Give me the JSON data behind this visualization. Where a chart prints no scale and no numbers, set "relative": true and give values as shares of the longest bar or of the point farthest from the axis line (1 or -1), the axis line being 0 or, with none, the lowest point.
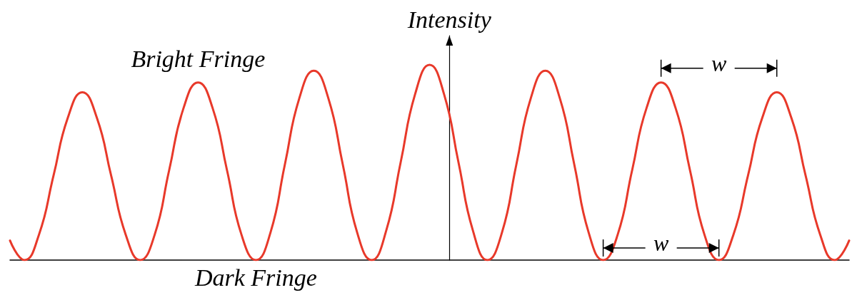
{
  "chart_data": {
    "type": "line",
    "relative": true,
    "ylabel": "Intensity",
    "color": "#e8392a",
    "categories": [
      null,
      null,
      null,
      null,
      null,
      null,
      null,
      null,
      null,
      null,
      null,
      null,
      null,
      null,
      null,
      null,
      null,
      null,
      null,
      null,
      null,
      null,
      null,
      null,
      null,
      null,
      null,
      null,
      null,
      null,
      null,
      null,
      null,
      null,
      null,
      null,
      null,
      null,
      null,
      null,
      null,
      null,
      null,
      null,
      null,
      null,
      null,
      null,
      null,
      null,
      null,
      null,
      null,
      null,
      null,
      null,
      null,
      null,
      null
    ],
    "values": [
      0.1,
      0,
      0.13,
      0.43,
      0.73,
      0.86,
      0.73,
      0.43,
      0.13,
      0,
      0.13,
      0.46,
      0.78,
      0.91,
      0.78,
      0.46,
      0.13,
      0,
      0.14,
      0.49,
      0.83,
      0.97,
      0.83,
      0.49,
      0.14,
      0,
      0.15,
      0.5,
      0.85,
      1,
      0.85,
      0.5,
      0.15,
      0,
      0.14,
      0.49,
      0.83,
      0.97,
      0.83,
      0.49,
      0.14,
      0,
      0.13,
      0.46,
      0.78,
      0.91,
      0.78,
      0.46,
      0.13,
      0,
      0.13,
      0.43,
      0.73,
      0.86,
      0.73,
      0.43,
      0.13,
      0,
      0.1
    ],
    "annotations": [
      "Bright Fringe",
      "Dark Fringe",
      "w",
      "w"
    ],
    "line_style": "solid",
    "marker": "none"
  }
}
